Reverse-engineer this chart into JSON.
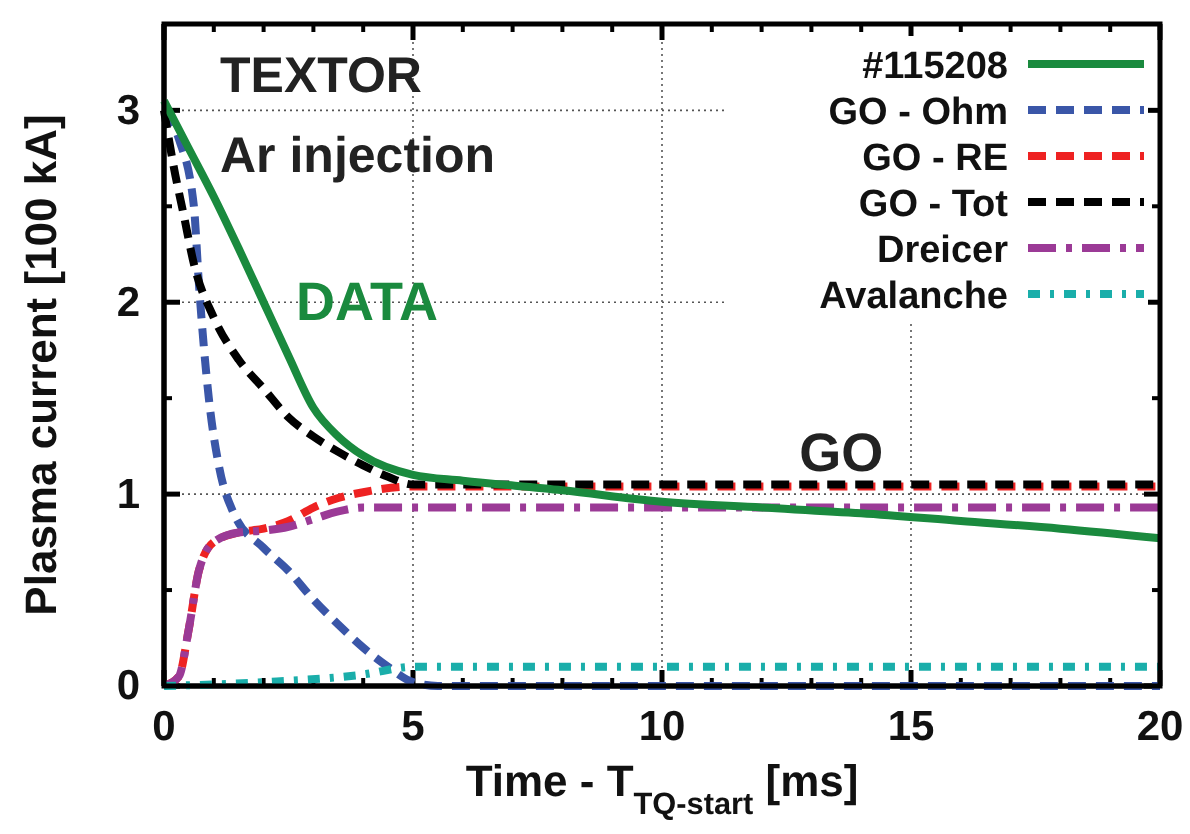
{
  "chart_data": {
    "type": "line",
    "xlabel": "Time - T$_{TQ-start}$ [ms]",
    "ylabel": "Plasma current [100 kA]",
    "xlim": [
      0,
      20
    ],
    "ylim": [
      0,
      3.45
    ],
    "xticks": [
      0,
      5,
      10,
      15,
      20
    ],
    "yticks": [
      0,
      1,
      2,
      3
    ],
    "grid": true,
    "legend": "top right",
    "annotations": [
      "TEXTOR",
      "Ar injection",
      "DATA",
      {
        "text": "GO",
        "x": 13.6,
        "y": 1.12
      }
    ],
    "series": [
      {
        "name": "#115208",
        "color": "#1a8a3e",
        "line_style": "solid",
        "x": [
          0,
          0.5,
          1,
          1.5,
          2,
          2.5,
          3,
          3.5,
          4,
          5,
          6,
          8,
          10,
          12,
          14,
          16,
          18,
          20
        ],
        "values": [
          3.05,
          2.8,
          2.55,
          2.28,
          2.0,
          1.72,
          1.45,
          1.3,
          1.2,
          1.1,
          1.07,
          1.02,
          0.96,
          0.93,
          0.9,
          0.86,
          0.82,
          0.77
        ]
      },
      {
        "name": "GO - Ohm",
        "color": "#3a56a8",
        "line_style": "dashed",
        "x": [
          0,
          0.3,
          0.6,
          0.7,
          0.9,
          1.1,
          1.4,
          2,
          2.5,
          3,
          3.5,
          4,
          4.5,
          5,
          5.5,
          20
        ],
        "values": [
          3.0,
          2.85,
          2.5,
          2.1,
          1.5,
          1.15,
          0.9,
          0.72,
          0.6,
          0.45,
          0.32,
          0.2,
          0.1,
          0.02,
          0,
          0
        ]
      },
      {
        "name": "GO - RE",
        "color": "#ee2222",
        "line_style": "dashed",
        "x": [
          0,
          0.3,
          0.5,
          0.7,
          1,
          1.5,
          2,
          2.5,
          3,
          3.5,
          4,
          5,
          20
        ],
        "values": [
          0,
          0.05,
          0.3,
          0.6,
          0.75,
          0.8,
          0.82,
          0.86,
          0.93,
          0.98,
          1.01,
          1.04,
          1.04
        ]
      },
      {
        "name": "GO - Tot",
        "color": "#000000",
        "line_style": "dashed",
        "x": [
          0,
          0.2,
          0.4,
          0.6,
          1,
          1.5,
          2,
          2.5,
          3,
          3.5,
          4,
          4.5,
          5,
          20
        ],
        "values": [
          3.0,
          2.7,
          2.45,
          2.2,
          1.92,
          1.7,
          1.55,
          1.4,
          1.3,
          1.22,
          1.15,
          1.09,
          1.05,
          1.05
        ]
      },
      {
        "name": "Dreicer",
        "color": "#9b3a96",
        "line_style": "dashdot",
        "x": [
          0,
          0.3,
          0.5,
          0.7,
          1,
          1.5,
          2,
          2.5,
          3,
          3.5,
          4,
          20
        ],
        "values": [
          0,
          0.05,
          0.3,
          0.6,
          0.75,
          0.8,
          0.81,
          0.83,
          0.87,
          0.91,
          0.93,
          0.93
        ]
      },
      {
        "name": "Avalanche",
        "color": "#1aaeaa",
        "line_style": "dashdotdot",
        "x": [
          0,
          2,
          4,
          5,
          20
        ],
        "values": [
          0,
          0.02,
          0.06,
          0.1,
          0.1
        ]
      }
    ]
  }
}
